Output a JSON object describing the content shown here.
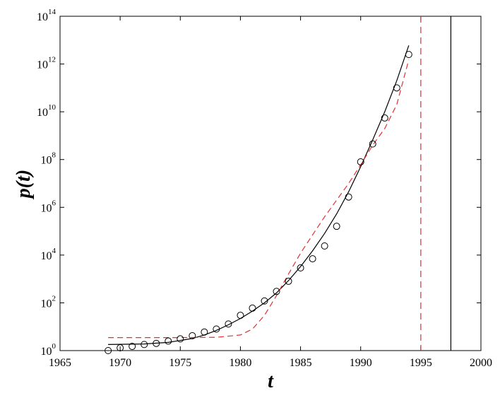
{
  "chart_data": {
    "type": "scatter",
    "title": "",
    "xlabel": "t",
    "ylabel": "p(t)",
    "xlim": [
      1965,
      2000
    ],
    "ylim_log10": [
      0,
      14
    ],
    "y_scale": "log",
    "grid": false,
    "legend": "none",
    "x_ticks": [
      1965,
      1970,
      1975,
      1980,
      1985,
      1990,
      1995,
      2000
    ],
    "y_ticks": [
      {
        "base": "10",
        "exp": "0"
      },
      {
        "base": "10",
        "exp": "2"
      },
      {
        "base": "10",
        "exp": "4"
      },
      {
        "base": "10",
        "exp": "6"
      },
      {
        "base": "10",
        "exp": "8"
      },
      {
        "base": "10",
        "exp": "10"
      },
      {
        "base": "10",
        "exp": "12"
      },
      {
        "base": "10",
        "exp": "14"
      }
    ],
    "series": [
      {
        "kind": "points",
        "marker": "circle",
        "color": "#000000",
        "x": [
          1969,
          1970,
          1971,
          1972,
          1973,
          1974,
          1975,
          1976,
          1977,
          1978,
          1979,
          1980,
          1981,
          1982,
          1983,
          1984,
          1985,
          1986,
          1987,
          1988,
          1989,
          1990,
          1991,
          1992,
          1993,
          1994
        ],
        "y": [
          1,
          1.3,
          1.5,
          1.8,
          2,
          2.5,
          3.1,
          4.2,
          6,
          8,
          13,
          30,
          60,
          120,
          300,
          800,
          2900,
          7000,
          24000,
          160000,
          2700000,
          80000000,
          450000000,
          5500000000,
          100000000000,
          2500000000000
        ]
      },
      {
        "kind": "line",
        "style": "solid",
        "color": "#000000",
        "x": [
          1969,
          1972,
          1974,
          1976,
          1977,
          1978,
          1979,
          1980,
          1981,
          1982,
          1983,
          1984,
          1985,
          1986,
          1987,
          1988,
          1989,
          1990,
          1991,
          1992,
          1993,
          1994
        ],
        "y": [
          1.8,
          1.9,
          2.2,
          3.2,
          4.5,
          7,
          12,
          22,
          45,
          100,
          260,
          850,
          3300,
          15000,
          80000,
          530000,
          4500000,
          50000000,
          660000000,
          10000000000,
          200000000000,
          6000000000000
        ]
      },
      {
        "kind": "line",
        "style": "dashed",
        "color": "#e03030",
        "x": [
          1969,
          1975,
          1978,
          1980,
          1981,
          1982,
          1983,
          1984,
          1985,
          1986,
          1987,
          1988,
          1989,
          1990,
          1991,
          1992,
          1993,
          1994
        ],
        "y": [
          3.5,
          3.5,
          3.6,
          4.5,
          8,
          30,
          200,
          1600,
          12000,
          70000,
          400000,
          2000000,
          10000000,
          60000000,
          400000000,
          2000000000,
          20000000000,
          1500000000000
        ]
      },
      {
        "kind": "vline",
        "style": "dashed",
        "color": "#e03030",
        "x": 1995
      },
      {
        "kind": "vline",
        "style": "solid",
        "color": "#000000",
        "x": 1997.5
      }
    ]
  }
}
